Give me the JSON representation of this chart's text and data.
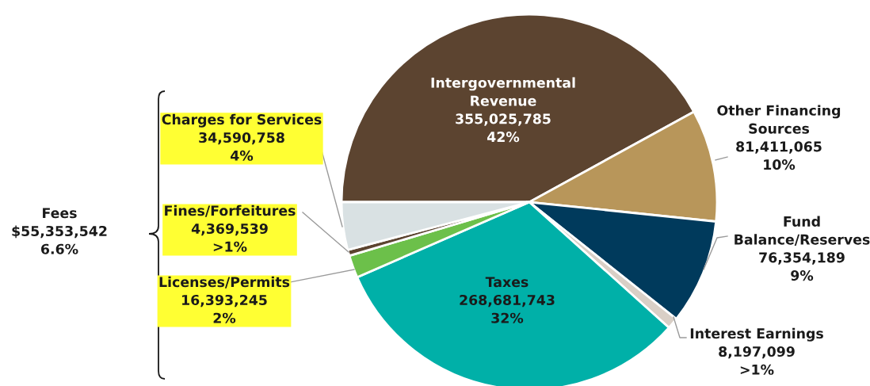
{
  "chart_data": {
    "type": "pie",
    "categories": [
      "Intergovernmental\nRevenue",
      "Other Financing\nSources",
      "Fund\nBalance/Reserves",
      "Interest Earnings",
      "Taxes",
      "Licenses/Permits",
      "Fines/Forfeitures",
      "Charges for Services"
    ],
    "values": [
      355025785,
      81411065,
      76354189,
      8197099,
      268681743,
      16393245,
      4369539,
      34590758
    ],
    "value_labels": [
      "355,025,785\n42%",
      "81,411,065\n10%",
      "76,354,189\n9%",
      "8,197,099\n>1%",
      "268,681,743\n32%",
      "16,393,245\n2%",
      "4,369,539\n>1%",
      "34,590,758\n4%"
    ],
    "colors": [
      "#5c4430",
      "#b8965a",
      "#003a5c",
      "#d9cfc6",
      "#00b0a8",
      "#6cc04a",
      "#5c4430",
      "#d9e1e3"
    ],
    "annotations": [
      "Fees\n$55,353,542\n6.6%"
    ]
  }
}
